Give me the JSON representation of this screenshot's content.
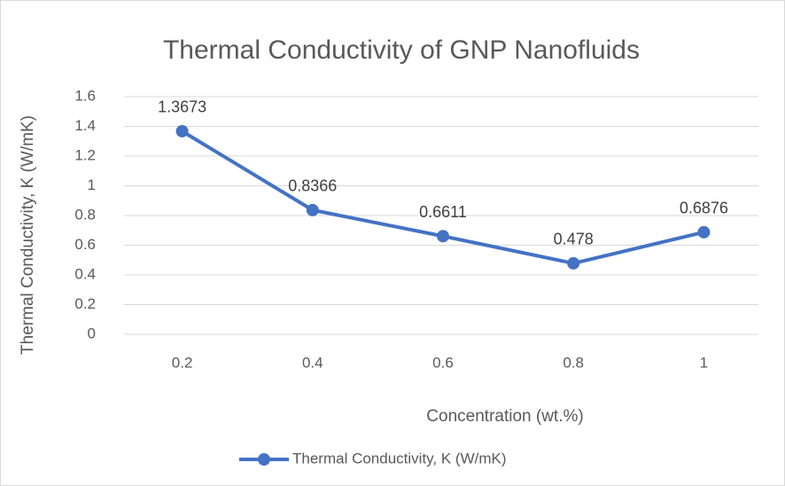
{
  "chart_data": {
    "type": "line",
    "title": "Thermal Conductivity of GNP Nanofluids",
    "x_label": "Concentration (wt.%)",
    "y_label": "Thermal Conductivity, K (W/mK)",
    "categories": [
      "0.2",
      "0.4",
      "0.6",
      "0.8",
      "1"
    ],
    "series": [
      {
        "name": "Thermal Conductivity, K (W/mK)",
        "color": "#4472c4",
        "values": [
          1.3673,
          0.8366,
          0.6611,
          0.478,
          0.6876
        ]
      }
    ],
    "ylim": [
      0,
      1.6
    ],
    "yticks": [
      0,
      0.2,
      0.4,
      0.6,
      0.8,
      1,
      1.2,
      1.4,
      1.6
    ],
    "grid": true,
    "legend": "bottom"
  }
}
